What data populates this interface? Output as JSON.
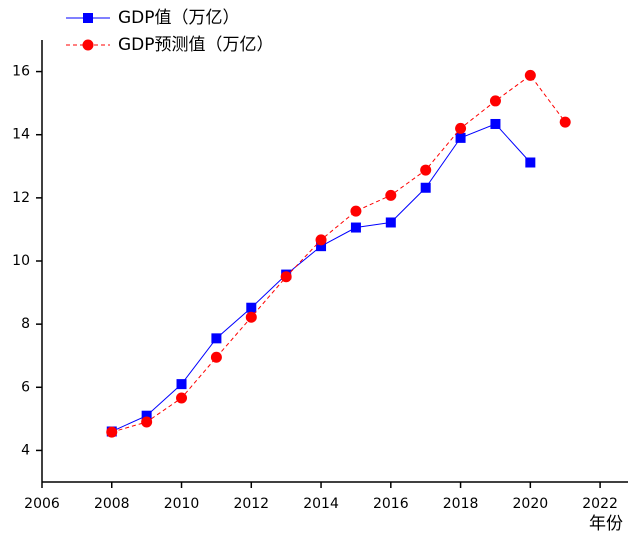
{
  "chart_data": {
    "type": "line",
    "x_label": "年份",
    "x": [
      2008,
      2009,
      2010,
      2011,
      2012,
      2013,
      2014,
      2015,
      2016,
      2017,
      2018,
      2019,
      2020,
      2021
    ],
    "series": [
      {
        "name": "GDP值（万亿）",
        "color": "#0000ff",
        "marker": "square",
        "dashed": false,
        "values": [
          4.6,
          5.1,
          6.1,
          7.55,
          8.52,
          9.57,
          10.47,
          11.06,
          11.22,
          12.32,
          13.9,
          14.34,
          13.12,
          null
        ]
      },
      {
        "name": "GDP预测值（万亿）",
        "color": "#ff0000",
        "marker": "circle",
        "dashed": true,
        "values": [
          4.58,
          4.9,
          5.66,
          6.95,
          8.22,
          9.5,
          10.67,
          11.58,
          12.08,
          12.88,
          14.2,
          15.07,
          15.88,
          14.4
        ]
      }
    ],
    "xlim": [
      2006,
      2022.8
    ],
    "xticks": [
      2006,
      2008,
      2010,
      2012,
      2014,
      2016,
      2018,
      2020,
      2022
    ],
    "ylim": [
      3,
      17
    ],
    "yticks": [
      4,
      6,
      8,
      10,
      12,
      14,
      16
    ],
    "grid": false,
    "legend": "upper left"
  }
}
